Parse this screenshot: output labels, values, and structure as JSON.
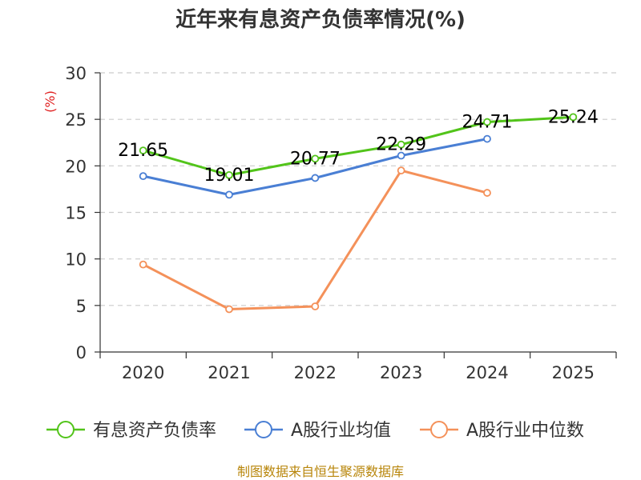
{
  "chart_data": {
    "type": "line",
    "title": "近年来有息资产负债率情况(%)",
    "ylabel": "(%)",
    "xlabel": "",
    "categories": [
      "2020",
      "2021",
      "2022",
      "2023",
      "2024",
      "2025"
    ],
    "ylim": [
      0,
      30
    ],
    "yticks": [
      0,
      5,
      10,
      15,
      20,
      25,
      30
    ],
    "grid": true,
    "series": [
      {
        "name": "有息资产负债率",
        "color": "#52c41a",
        "values": [
          21.65,
          19.01,
          20.77,
          22.29,
          24.71,
          25.24
        ],
        "labels": true
      },
      {
        "name": "A股行业均值",
        "color": "#4a7fd4",
        "values": [
          18.9,
          16.9,
          18.7,
          21.1,
          22.9,
          null
        ],
        "labels": false
      },
      {
        "name": "A股行业中位数",
        "color": "#f4915a",
        "values": [
          9.4,
          4.6,
          4.9,
          19.5,
          17.1,
          null
        ],
        "labels": false
      }
    ],
    "legend_position": "bottom",
    "source": "制图数据来自恒生聚源数据库"
  }
}
